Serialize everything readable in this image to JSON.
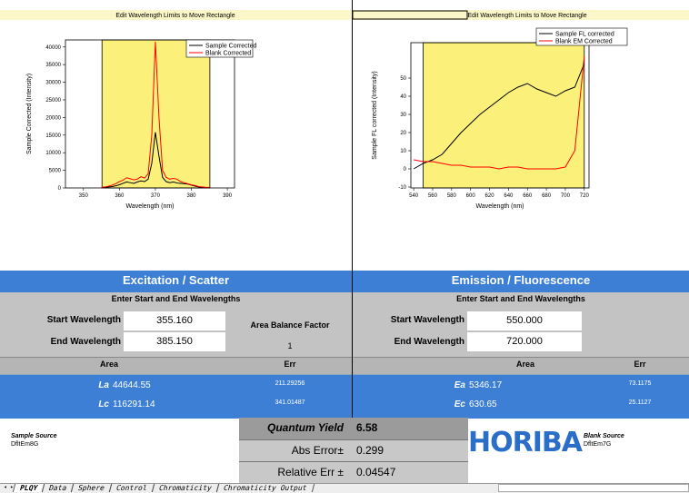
{
  "header_bars": [
    "Edit Wavelength Limits to Move Rectangle",
    "Edit Wavelength Limits to Move Rectangle"
  ],
  "charts": [
    {
      "type": "line",
      "xlabel": "Wavelength (nm)",
      "ylabel": "Sample Corrected (Intensity)",
      "xlim": [
        345,
        392
      ],
      "ylim": [
        0,
        42000
      ],
      "xticks": [
        350,
        360,
        370,
        380,
        390
      ],
      "yticks": [
        0,
        5000,
        10000,
        15000,
        20000,
        25000,
        30000,
        35000,
        40000
      ],
      "x": [
        355,
        356,
        357,
        358,
        359,
        360,
        361,
        362,
        363,
        364,
        365,
        366,
        367,
        368,
        369,
        370,
        371,
        372,
        373,
        374,
        375,
        376,
        377,
        378,
        379,
        380,
        381,
        382,
        383,
        384,
        385
      ],
      "series": [
        {
          "name": "Sample Corrected",
          "color": "#000000",
          "values": [
            100,
            200,
            300,
            400,
            600,
            900,
            1300,
            1700,
            1500,
            1300,
            1700,
            2000,
            1800,
            2500,
            7000,
            15800,
            9000,
            3000,
            1800,
            1500,
            1700,
            1400,
            1300,
            1200,
            1100,
            800,
            500,
            300,
            200,
            100,
            100
          ]
        },
        {
          "name": "Blank Corrected",
          "color": "#ff0000",
          "values": [
            200,
            300,
            500,
            800,
            1200,
            1800,
            2200,
            2900,
            2600,
            2300,
            2500,
            3200,
            2800,
            4000,
            15000,
            41500,
            20000,
            5000,
            3000,
            2500,
            2700,
            2500,
            1800,
            1500,
            1200,
            900,
            700,
            400,
            300,
            200,
            150
          ]
        }
      ]
    },
    {
      "type": "line",
      "xlabel": "Wavelength (nm)",
      "ylabel": "Sample FL corrected (Intensity)",
      "xlim": [
        537,
        725
      ],
      "ylim": [
        -10.5,
        69.5
      ],
      "xticks": [
        540,
        560,
        580,
        600,
        620,
        640,
        660,
        680,
        700,
        720
      ],
      "yticks": [
        -10,
        0,
        10,
        20,
        30,
        40,
        50
      ],
      "x": [
        540,
        550,
        560,
        570,
        580,
        590,
        600,
        610,
        620,
        630,
        640,
        650,
        660,
        670,
        680,
        690,
        700,
        710,
        720
      ],
      "series": [
        {
          "name": "Sample FL corrected",
          "color": "#000000",
          "values": [
            0,
            3,
            5,
            8,
            14,
            20,
            25,
            30,
            34,
            38,
            42,
            45,
            47,
            44,
            42,
            40,
            43,
            45,
            58
          ]
        },
        {
          "name": "Blank EM Corrected",
          "color": "#ff0000",
          "values": [
            5,
            4,
            4,
            3,
            2,
            2,
            1,
            1,
            1,
            0,
            1,
            1,
            0,
            0,
            0,
            0,
            1,
            10,
            62
          ]
        }
      ]
    }
  ],
  "excitation": {
    "title": "Excitation / Scatter",
    "subtitle": "Enter Start and End Wavelengths",
    "start_label": "Start Wavelength",
    "start_value": "355.160",
    "end_label": "End Wavelength",
    "end_value": "385.150",
    "balance_label": "Area Balance Factor",
    "balance_value": "1",
    "area_header": "Area",
    "err_header": "Err",
    "row1_label": "La",
    "row1_value": "44644.55",
    "row1_err": "211.29256",
    "row2_label": "Lc",
    "row2_value": "116291.14",
    "row2_err": "341.01487"
  },
  "emission": {
    "title": "Emission / Fluorescence",
    "subtitle": "Enter Start and End Wavelengths",
    "start_label": "Start Wavelength",
    "start_value": "550.000",
    "end_label": "End Wavelength",
    "end_value": "720.000",
    "area_header": "Area",
    "err_header": "Err",
    "row1_label": "Ea",
    "row1_value": "5346.17",
    "row1_err": "73.1175",
    "row2_label": "Ec",
    "row2_value": "630.65",
    "row2_err": "25.1127"
  },
  "footer": {
    "sample_source_label": "Sample Source",
    "sample_source": "DfltEm8G",
    "qy_label": "Quantum Yield",
    "qy_value": "6.58",
    "abs_label": "Abs Error±",
    "abs_value": "0.299",
    "rel_label": "Relative Err ±",
    "rel_value": "0.04547",
    "logo": "HORIBA",
    "blank_source_label": "Blank Source",
    "blank_source": "DfltEm7G"
  },
  "tabs": [
    "PLQY",
    "Data",
    "Sphere",
    "Control",
    "Chromaticity",
    "Chromaticity Output"
  ]
}
